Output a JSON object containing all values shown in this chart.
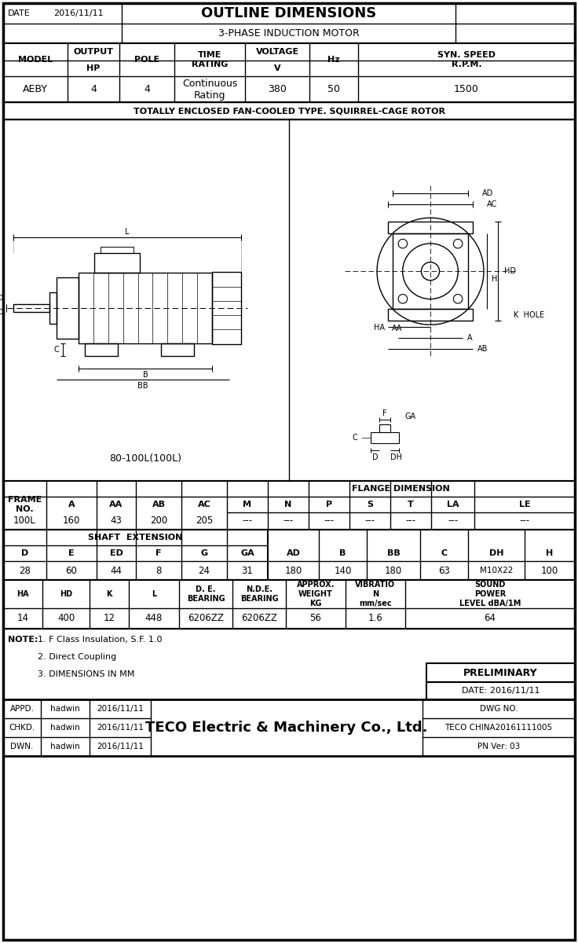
{
  "title": "OUTLINE DIMENSIONS",
  "subtitle": "3-PHASE INDUCTION MOTOR",
  "date": "2016/11/11",
  "motor_type": "TOTALLY ENCLOSED FAN-COOLED TYPE. SQUIRREL-CAGE ROTOR",
  "frame_label": "80-100L(100L)",
  "spec_vals": [
    "AEBY",
    "4",
    "4",
    "Continuous\nRating",
    "380",
    "50",
    "1500"
  ],
  "table1_flange_header": "FLANGE DIMENSION",
  "table1_main_headers": [
    "FRAME\nNO.",
    "A",
    "AA",
    "AB",
    "AC"
  ],
  "table1_flange_headers": [
    "M",
    "N",
    "P",
    "S",
    "T",
    "LA",
    "LE"
  ],
  "table1_values": [
    "100L",
    "160",
    "43",
    "200",
    "205",
    "---",
    "---",
    "---",
    "---",
    "---",
    "---",
    "---"
  ],
  "table2_shaft_header": "SHAFT  EXTENSION",
  "table2_shaft_headers": [
    "D",
    "E",
    "ED",
    "F",
    "G",
    "GA"
  ],
  "table2_right_headers": [
    "AD",
    "B",
    "BB",
    "C",
    "DH",
    "H"
  ],
  "table2_values": [
    "28",
    "60",
    "44",
    "8",
    "24",
    "31",
    "180",
    "140",
    "180",
    "63",
    "M10X22",
    "100"
  ],
  "table3_headers": [
    "HA",
    "HD",
    "K",
    "L",
    "D. E.\nBEARING",
    "N.D.E.\nBEARING",
    "APPROX.\nWEIGHT\nKG",
    "VIBRATIO\nN\nmm/sec",
    "SOUND\nPOWER\nLEVEL dBA/1M"
  ],
  "table3_values": [
    "14",
    "400",
    "12",
    "448",
    "6206ZZ",
    "6206ZZ",
    "56",
    "1.6",
    "64"
  ],
  "notes": [
    "1. F Class Insulation, S.F. 1.0",
    "2. Direct Coupling",
    "3. DIMENSIONS IN MM"
  ],
  "prelim_label": "PRELIMINARY",
  "prelim_date": "DATE: 2016/11/11",
  "footer_left": [
    [
      "APPD.",
      "hadwin",
      "2016/11/11"
    ],
    [
      "CHKD.",
      "hadwin",
      "2016/11/11"
    ],
    [
      "DWN.",
      "hadwin",
      "2016/11/11"
    ]
  ],
  "company": "TECO Electric & Machinery Co., Ltd.",
  "dwg_no": "DWG NO.",
  "dwg_no_val": "TECO CHINA20161111005",
  "pn_ver": "PN Ver: 03",
  "bg_color": "#ffffff",
  "line_color": "#000000",
  "text_color": "#000000"
}
